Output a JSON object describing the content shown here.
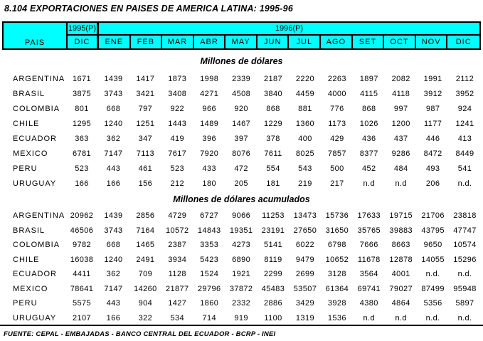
{
  "title": "8.104  EXPORTACIONES EN PAISES DE AMERICA LATINA: 1995-96",
  "header": {
    "pais": "PAIS",
    "year_1995": "1995(P)",
    "year_1996": "1996(P)",
    "dic_1995": "DIC",
    "months_1996": [
      "ENE",
      "FEB",
      "MAR",
      "ABR",
      "MAY",
      "JUN",
      "JUL",
      "AGO",
      "SET",
      "OCT",
      "NOV",
      "DIC"
    ]
  },
  "sections": [
    {
      "title": "Millones de dólares",
      "rows": [
        {
          "country": "ARGENTINA",
          "values": [
            "1671",
            "1439",
            "1417",
            "1873",
            "1998",
            "2339",
            "2187",
            "2220",
            "2263",
            "1897",
            "2082",
            "1991",
            "2112"
          ]
        },
        {
          "country": "BRASIL",
          "values": [
            "3875",
            "3743",
            "3421",
            "3408",
            "4271",
            "4508",
            "3840",
            "4459",
            "4000",
            "4115",
            "4118",
            "3912",
            "3952"
          ]
        },
        {
          "country": "COLOMBIA",
          "values": [
            "801",
            "668",
            "797",
            "922",
            "966",
            "920",
            "868",
            "881",
            "776",
            "868",
            "997",
            "987",
            "924"
          ]
        },
        {
          "country": "CHILE",
          "values": [
            "1295",
            "1240",
            "1251",
            "1443",
            "1489",
            "1467",
            "1229",
            "1360",
            "1173",
            "1026",
            "1200",
            "1177",
            "1241"
          ]
        },
        {
          "country": "ECUADOR",
          "values": [
            "363",
            "362",
            "347",
            "419",
            "396",
            "397",
            "378",
            "400",
            "429",
            "436",
            "437",
            "446",
            "413"
          ]
        },
        {
          "country": "MEXICO",
          "values": [
            "6781",
            "7147",
            "7113",
            "7617",
            "7920",
            "8076",
            "7611",
            "8025",
            "7857",
            "8377",
            "9286",
            "8472",
            "8449"
          ]
        },
        {
          "country": "PERU",
          "values": [
            "523",
            "443",
            "461",
            "523",
            "433",
            "472",
            "554",
            "543",
            "500",
            "452",
            "484",
            "493",
            "541"
          ]
        },
        {
          "country": "URUGUAY",
          "values": [
            "166",
            "166",
            "156",
            "212",
            "180",
            "205",
            "181",
            "219",
            "217",
            "n.d",
            "n.d",
            "206",
            "n.d."
          ]
        }
      ]
    },
    {
      "title": "Millones de dólares acumulados",
      "rows": [
        {
          "country": "ARGENTINA",
          "values": [
            "20962",
            "1439",
            "2856",
            "4729",
            "6727",
            "9066",
            "11253",
            "13473",
            "15736",
            "17633",
            "19715",
            "21706",
            "23818"
          ]
        },
        {
          "country": "BRASIL",
          "values": [
            "46506",
            "3743",
            "7164",
            "10572",
            "14843",
            "19351",
            "23191",
            "27650",
            "31650",
            "35765",
            "39883",
            "43795",
            "47747"
          ]
        },
        {
          "country": "COLOMBIA",
          "values": [
            "9782",
            "668",
            "1465",
            "2387",
            "3353",
            "4273",
            "5141",
            "6022",
            "6798",
            "7666",
            "8663",
            "9650",
            "10574"
          ]
        },
        {
          "country": "CHILE",
          "values": [
            "16038",
            "1240",
            "2491",
            "3934",
            "5423",
            "6890",
            "8119",
            "9479",
            "10652",
            "11678",
            "12878",
            "14055",
            "15296"
          ]
        },
        {
          "country": "ECUADOR",
          "values": [
            "4411",
            "362",
            "709",
            "1128",
            "1524",
            "1921",
            "2299",
            "2699",
            "3128",
            "3564",
            "4001",
            "n.d.",
            "n.d."
          ]
        },
        {
          "country": "MEXICO",
          "values": [
            "78641",
            "7147",
            "14260",
            "21877",
            "29796",
            "37872",
            "45483",
            "53507",
            "61364",
            "69741",
            "79027",
            "87499",
            "95948"
          ]
        },
        {
          "country": "PERU",
          "values": [
            "5575",
            "443",
            "904",
            "1427",
            "1860",
            "2332",
            "2886",
            "3429",
            "3928",
            "4380",
            "4864",
            "5356",
            "5897"
          ]
        },
        {
          "country": "URUGUAY",
          "values": [
            "2107",
            "166",
            "322",
            "534",
            "714",
            "919",
            "1100",
            "1319",
            "1536",
            "n.d",
            "n.d",
            "n.d.",
            "n.d."
          ]
        }
      ]
    }
  ],
  "footer": {
    "source": "FUENTE: CEPAL - EMBAJADAS - BANCO CENTRAL DEL ECUADOR - BCRP - INEI"
  },
  "colors": {
    "header_bg": "#00FFFF",
    "border": "#000000",
    "text": "#000000",
    "page_bg": "#FFFFFF"
  }
}
